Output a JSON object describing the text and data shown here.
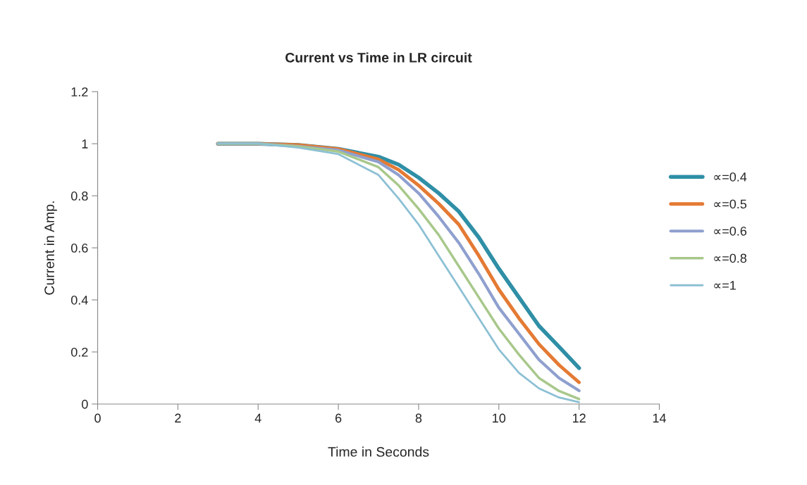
{
  "chart_data": {
    "type": "line",
    "title": "Current vs Time in LR circuit",
    "xlabel": "Time in Seconds",
    "ylabel": "Current in Amp.",
    "x": [
      3,
      4,
      5,
      6,
      7,
      7.5,
      8,
      8.5,
      9,
      9.5,
      10,
      10.5,
      11,
      11.5,
      12
    ],
    "series": [
      {
        "name": "∝=0.4",
        "color": "#2f8fa6",
        "values": [
          1,
          1,
          0.995,
          0.98,
          0.95,
          0.92,
          0.87,
          0.81,
          0.74,
          0.64,
          0.52,
          0.41,
          0.3,
          0.22,
          0.138
        ]
      },
      {
        "name": "∝=0.5",
        "color": "#e47a34",
        "values": [
          1,
          1,
          0.995,
          0.98,
          0.94,
          0.9,
          0.84,
          0.77,
          0.69,
          0.57,
          0.44,
          0.33,
          0.23,
          0.15,
          0.083
        ]
      },
      {
        "name": "∝=0.6",
        "color": "#8fa0cf",
        "values": [
          1,
          1,
          0.99,
          0.975,
          0.93,
          0.88,
          0.81,
          0.72,
          0.62,
          0.5,
          0.37,
          0.27,
          0.17,
          0.1,
          0.051
        ]
      },
      {
        "name": "∝=0.8",
        "color": "#a8c88b",
        "values": [
          1,
          1,
          0.99,
          0.97,
          0.91,
          0.84,
          0.75,
          0.65,
          0.53,
          0.41,
          0.29,
          0.19,
          0.1,
          0.05,
          0.019
        ]
      },
      {
        "name": "∝=1",
        "color": "#8cc0d4",
        "values": [
          1,
          1,
          0.985,
          0.96,
          0.88,
          0.79,
          0.69,
          0.57,
          0.45,
          0.33,
          0.21,
          0.12,
          0.06,
          0.025,
          0.007
        ]
      }
    ],
    "xlim": [
      0,
      14
    ],
    "xticks": [
      0,
      2,
      4,
      6,
      8,
      10,
      12,
      14
    ],
    "ylim": [
      0,
      1.2
    ],
    "yticks": [
      0,
      0.2,
      0.4,
      0.6,
      0.8,
      1,
      1.2
    ],
    "grid": false,
    "legend": "right",
    "marker": "none",
    "line_style": "solid"
  }
}
